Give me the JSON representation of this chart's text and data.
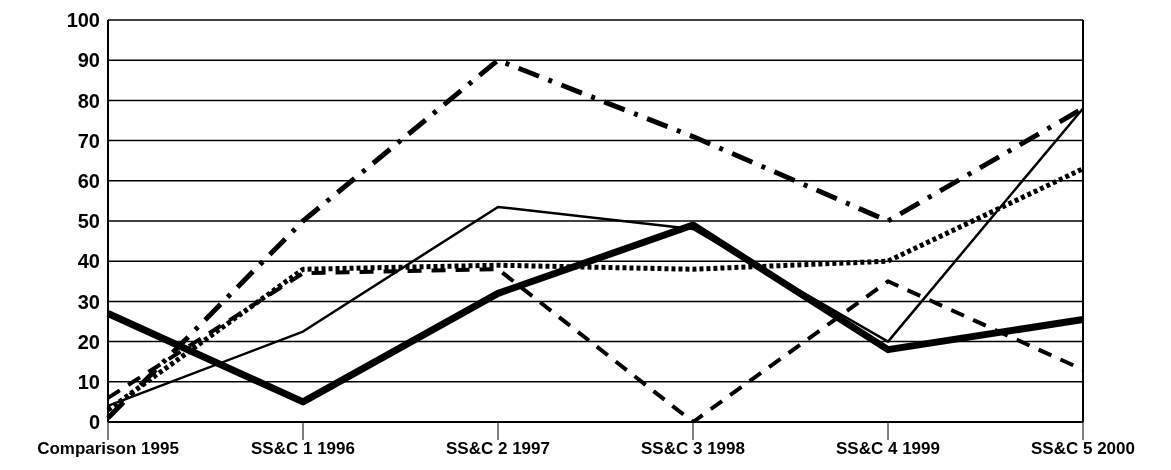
{
  "chart_data": {
    "type": "line",
    "categories": [
      "Comparison 1995",
      "SS&C 1 1996",
      "SS&C 2 1997",
      "SS&C 3 1998",
      "SS&C 4 1999",
      "SS&C 5 2000"
    ],
    "series": [
      {
        "color": "#000000",
        "line_style": "solid",
        "values": [
          27,
          5,
          32,
          49,
          18,
          25.5
        ]
      },
      {
        "color": "#000000",
        "line_style": "solid",
        "values": [
          4,
          22.5,
          53.5,
          48,
          20,
          78
        ]
      },
      {
        "color": "#000000",
        "line_style": "dashdot",
        "values": [
          1,
          50,
          90,
          71,
          50,
          78
        ]
      },
      {
        "color": "#000000",
        "line_style": "dashed",
        "values": [
          6,
          37,
          38,
          0,
          35,
          13
        ]
      },
      {
        "color": "#000000",
        "line_style": "dotted",
        "values": [
          3,
          38,
          39,
          38,
          40,
          63
        ]
      }
    ],
    "ylim": [
      0,
      100
    ],
    "yticks": [
      0,
      10,
      20,
      30,
      40,
      50,
      60,
      70,
      80,
      90,
      100
    ],
    "grid": "y",
    "legend": false,
    "marker": "none"
  }
}
